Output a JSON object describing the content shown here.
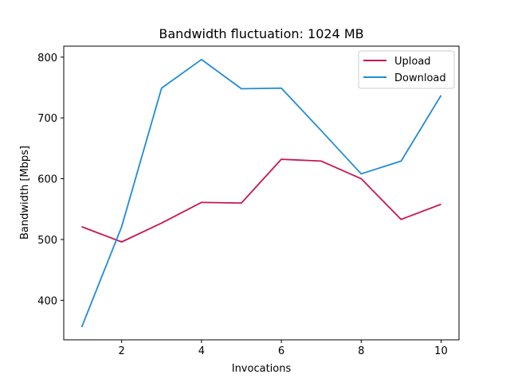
{
  "chart_data": {
    "type": "line",
    "title": "Bandwidth fluctuation: 1024 MB",
    "xlabel": "Invocations",
    "ylabel": "Bandwidth [Mbps]",
    "x": [
      1,
      2,
      3,
      4,
      5,
      6,
      7,
      8,
      9,
      10
    ],
    "xticks": [
      "2",
      "4",
      "6",
      "8",
      "10"
    ],
    "yticks": [
      "400",
      "500",
      "600",
      "700",
      "800"
    ],
    "xlim": [
      0.55,
      10.45
    ],
    "ylim": [
      335,
      818
    ],
    "grid": false,
    "legend_position": "top-right",
    "series": [
      {
        "name": "Upload",
        "color": "#c7174f",
        "values": [
          521,
          496,
          527,
          561,
          560,
          632,
          629,
          600,
          533,
          558
        ]
      },
      {
        "name": "Download",
        "color": "#1f8bd8",
        "values": [
          356,
          521,
          749,
          796,
          748,
          749,
          679,
          608,
          629,
          737
        ]
      }
    ]
  }
}
